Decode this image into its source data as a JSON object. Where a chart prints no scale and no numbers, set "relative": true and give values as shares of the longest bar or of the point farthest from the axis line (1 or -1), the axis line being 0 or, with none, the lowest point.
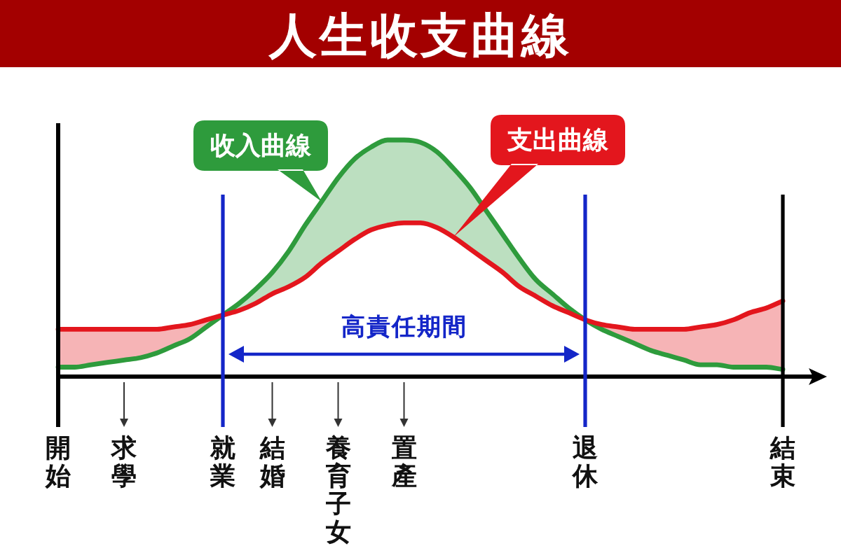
{
  "chart_data": {
    "type": "line",
    "title": "人生收支曲線",
    "categories": [
      "開始",
      null,
      null,
      null,
      "求學",
      null,
      null,
      null,
      null,
      null,
      "就業",
      null,
      null,
      "結婚",
      null,
      null,
      null,
      "養育子女",
      null,
      null,
      null,
      "置產",
      null,
      null,
      null,
      null,
      null,
      null,
      null,
      null,
      null,
      null,
      "退休",
      null,
      null,
      null,
      null,
      null,
      null,
      null,
      null,
      null,
      null,
      null,
      "結束"
    ],
    "relative": true,
    "tick_labels": "x",
    "series": [
      {
        "name": "收入曲線",
        "color": "#2e9b3c",
        "values": [
          0.04,
          0.04,
          0.05,
          0.06,
          0.07,
          0.08,
          0.1,
          0.13,
          0.16,
          0.21,
          0.26,
          0.31,
          0.37,
          0.44,
          0.53,
          0.64,
          0.74,
          0.84,
          0.92,
          0.97,
          1,
          1,
          0.99,
          0.95,
          0.88,
          0.8,
          0.7,
          0.6,
          0.5,
          0.41,
          0.35,
          0.29,
          0.24,
          0.2,
          0.17,
          0.14,
          0.11,
          0.09,
          0.07,
          0.05,
          0.05,
          0.04,
          0.04,
          0.04,
          0.03
        ],
        "upper": [
          null,
          null,
          null,
          null,
          null,
          null,
          null,
          null,
          null,
          null,
          0.26,
          0.31,
          0.37,
          0.44,
          0.53,
          0.64,
          0.74,
          0.84,
          0.92,
          0.97,
          1,
          1,
          0.99,
          0.95,
          0.88,
          0.8,
          0.7,
          0.6,
          0.5,
          0.41,
          0.35,
          0.29,
          0.24,
          null,
          null,
          null,
          null,
          null,
          null,
          null,
          null,
          null,
          null,
          null,
          null
        ],
        "lower": [
          null,
          null,
          null,
          null,
          null,
          null,
          null,
          null,
          null,
          null,
          0.26,
          0.28,
          0.31,
          0.35,
          0.38,
          0.42,
          0.48,
          0.53,
          0.58,
          0.62,
          0.64,
          0.65,
          0.65,
          0.63,
          0.59,
          0.54,
          0.49,
          0.44,
          0.38,
          0.34,
          0.3,
          0.27,
          0.24,
          null,
          null,
          null,
          null,
          null,
          null,
          null,
          null,
          null,
          null,
          null,
          null
        ]
      },
      {
        "name": "支出曲線",
        "color": "#e3161d",
        "values": [
          0.2,
          0.2,
          0.2,
          0.2,
          0.2,
          0.2,
          0.2,
          0.21,
          0.22,
          0.24,
          0.26,
          0.28,
          0.31,
          0.35,
          0.38,
          0.42,
          0.48,
          0.53,
          0.58,
          0.62,
          0.64,
          0.65,
          0.65,
          0.63,
          0.59,
          0.54,
          0.49,
          0.44,
          0.38,
          0.34,
          0.3,
          0.27,
          0.24,
          0.22,
          0.21,
          0.2,
          0.2,
          0.2,
          0.2,
          0.21,
          0.22,
          0.24,
          0.27,
          0.29,
          0.32
        ],
        "upper": [
          0.2,
          0.2,
          0.2,
          0.2,
          0.2,
          0.2,
          0.2,
          0.21,
          0.22,
          0.24,
          0.26,
          null,
          null,
          null,
          null,
          null,
          null,
          null,
          null,
          null,
          null,
          null,
          null,
          null,
          null,
          null,
          null,
          null,
          null,
          null,
          null,
          null,
          0.24,
          0.22,
          0.21,
          0.2,
          0.2,
          0.2,
          0.2,
          0.21,
          0.22,
          0.24,
          0.27,
          0.29,
          0.32
        ],
        "lower": [
          0.04,
          0.04,
          0.05,
          0.06,
          0.07,
          0.08,
          0.1,
          0.13,
          0.16,
          0.21,
          0.26,
          null,
          null,
          null,
          null,
          null,
          null,
          null,
          null,
          null,
          null,
          null,
          null,
          null,
          null,
          null,
          null,
          null,
          null,
          null,
          null,
          null,
          0.24,
          0.2,
          0.17,
          0.14,
          0.11,
          0.09,
          0.07,
          0.05,
          0.05,
          0.04,
          0.04,
          0.04,
          0.03
        ]
      }
    ],
    "ref_lines": [
      {
        "axis": "x",
        "value": "就業",
        "color": "#1426c8"
      },
      {
        "axis": "x",
        "value": "退休",
        "color": "#1426c8"
      },
      {
        "axis": "x",
        "value": "結束",
        "color": "#000000"
      }
    ],
    "annotations": [
      "高責任期間"
    ]
  }
}
